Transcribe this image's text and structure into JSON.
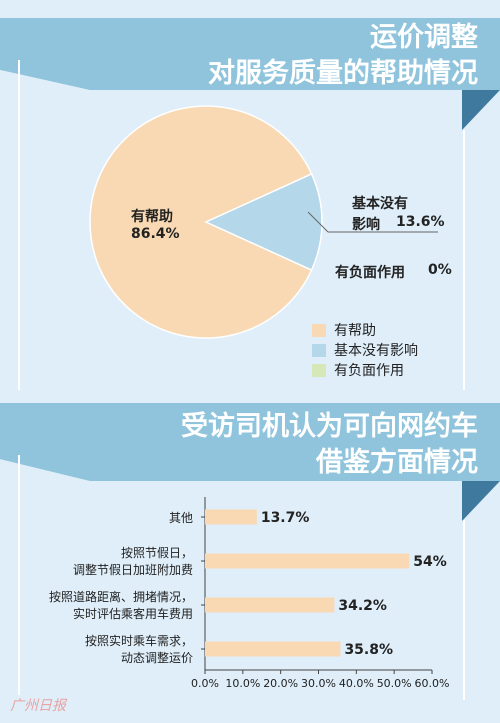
{
  "colors": {
    "background": "#dfeef9",
    "banner": "#8fc4dc",
    "banner_fold": "#3f7a9e",
    "pie_helpful": "#f8d9b4",
    "pie_no_effect": "#b4d7ea",
    "pie_negative": "#d6e7b8",
    "bar": "#f8d9b4"
  },
  "section1": {
    "title_line1": "运价调整",
    "title_line2": "对服务质量的帮助情况"
  },
  "section2": {
    "title_line1": "受访司机认为可向网约车",
    "title_line2": "借鉴方面情况"
  },
  "chart_data": [
    {
      "type": "pie",
      "title": "运价调整对服务质量的帮助情况",
      "slices": [
        {
          "label": "有帮助",
          "value": 86.4,
          "value_text": "86.4%",
          "color": "#f8d9b4"
        },
        {
          "label": "基本没有影响",
          "value": 13.6,
          "value_text": "13.6%",
          "color": "#b4d7ea"
        },
        {
          "label": "有负面作用",
          "value": 0,
          "value_text": "0%",
          "color": "#d6e7b8"
        }
      ],
      "slice_labels": {
        "helpful_name": "有帮助",
        "helpful_value": "86.4%",
        "no_effect_line1": "基本没有",
        "no_effect_line2": "影响",
        "no_effect_value": "13.6%",
        "negative_name": "有负面作用",
        "negative_value": "0%"
      },
      "legend": [
        "有帮助",
        "基本没有影响",
        "有负面作用"
      ],
      "legend_position": "bottom-right"
    },
    {
      "type": "bar",
      "orientation": "horizontal",
      "title": "受访司机认为可向网约车借鉴方面情况",
      "categories": [
        [
          "其他"
        ],
        [
          "按照节假日，",
          "调整节假日加班附加费"
        ],
        [
          "按照道路距离、拥堵情况，",
          "实时评估乘客用车费用"
        ],
        [
          "按照实时乘车需求，",
          "动态调整运价"
        ]
      ],
      "values": [
        13.7,
        54,
        34.2,
        35.8
      ],
      "value_labels": [
        "13.7%",
        "54%",
        "34.2%",
        "35.8%"
      ],
      "xlim": [
        0,
        60
      ],
      "xticks": [
        0,
        10,
        20,
        30,
        40,
        50,
        60
      ],
      "xtick_labels": [
        "0.0%",
        "10.0%",
        "20.0%",
        "30.0%",
        "40.0%",
        "50.0%",
        "60.0%"
      ],
      "grid": false
    }
  ],
  "watermark": "广州日报"
}
